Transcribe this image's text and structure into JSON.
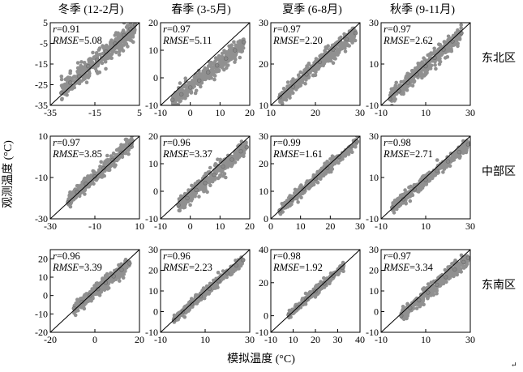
{
  "figure": {
    "xlabel": "模拟温度 (°C)",
    "ylabel": "观测温度 (°C)",
    "seasons": [
      "冬季 (12-2月)",
      "春季 (3-5月)",
      "夏季 (6-8月)",
      "秋季 (9-11月)"
    ],
    "regions": [
      "东北区",
      "中部区",
      "东南区"
    ],
    "stat_r_label": "r",
    "stat_rmse_label": "RMSE",
    "corner_mark": "↵"
  },
  "chart_data": [
    {
      "type": "scatter",
      "region": "东北区",
      "season": "冬季 (12-2月)",
      "r": "0.91",
      "rmse": "5.08",
      "xlim": [
        -35,
        5
      ],
      "ylim": [
        -35,
        5
      ],
      "xticks": [
        "-35",
        "-15",
        "5"
      ],
      "yticks": [
        "5",
        "-5",
        "-15",
        "-25",
        "-35"
      ],
      "ytick_values": [
        5,
        -5,
        -15,
        -25,
        -35
      ],
      "cloud": {
        "xrange": [
          -30,
          3
        ],
        "slope": 0.92,
        "intercept": -0.5,
        "spread": 2.6
      },
      "points": [
        [
          -30,
          -29
        ],
        [
          -26,
          -24
        ],
        [
          -22,
          -21
        ],
        [
          -18,
          -16
        ],
        [
          -14,
          -13
        ],
        [
          -10,
          -9
        ],
        [
          -6,
          -5
        ],
        [
          -2,
          -1
        ],
        [
          1,
          2
        ],
        [
          3,
          4
        ]
      ]
    },
    {
      "type": "scatter",
      "region": "东北区",
      "season": "春季 (3-5月)",
      "r": "0.97",
      "rmse": "5.11",
      "xlim": [
        -10,
        20
      ],
      "ylim": [
        -10,
        20
      ],
      "xticks": [
        "-10",
        "0",
        "10",
        "20"
      ],
      "yticks": [
        "20",
        "10",
        "0",
        "-10"
      ],
      "ytick_values": [
        20,
        10,
        0,
        -10
      ],
      "cloud": {
        "xrange": [
          -6,
          18
        ],
        "slope": 0.88,
        "intercept": -3.5,
        "spread": 1.5
      },
      "points": [
        [
          -6,
          -8
        ],
        [
          -3,
          -6
        ],
        [
          0,
          -3.5
        ],
        [
          3,
          -1
        ],
        [
          6,
          2
        ],
        [
          9,
          4.5
        ],
        [
          12,
          7
        ],
        [
          15,
          10
        ],
        [
          18,
          13
        ]
      ]
    },
    {
      "type": "scatter",
      "region": "东北区",
      "season": "夏季 (6-8月)",
      "r": "0.97",
      "rmse": "2.20",
      "xlim": [
        10,
        30
      ],
      "ylim": [
        10,
        30
      ],
      "xticks": [
        "10",
        "20",
        "30"
      ],
      "yticks": [
        "30",
        "20",
        "10"
      ],
      "ytick_values": [
        30,
        20,
        10
      ],
      "cloud": {
        "xrange": [
          12,
          29
        ],
        "slope": 0.95,
        "intercept": 0.3,
        "spread": 1.0
      },
      "points": [
        [
          12,
          12
        ],
        [
          15,
          14.5
        ],
        [
          18,
          17.5
        ],
        [
          21,
          20.5
        ],
        [
          24,
          23.5
        ],
        [
          27,
          26
        ],
        [
          29,
          27.5
        ]
      ]
    },
    {
      "type": "scatter",
      "region": "东北区",
      "season": "秋季 (9-11月)",
      "r": "0.97",
      "rmse": "2.62",
      "xlim": [
        -10,
        30
      ],
      "ylim": [
        -10,
        30
      ],
      "xticks": [
        "-10",
        "10",
        "30"
      ],
      "yticks": [
        "30",
        "10",
        "-10"
      ],
      "ytick_values": [
        30,
        10,
        -10
      ],
      "cloud": {
        "xrange": [
          -6,
          26
        ],
        "slope": 0.97,
        "intercept": -0.5,
        "spread": 2.0
      },
      "points": [
        [
          -6,
          -7
        ],
        [
          -2,
          -3
        ],
        [
          2,
          1
        ],
        [
          6,
          5
        ],
        [
          10,
          9
        ],
        [
          14,
          13
        ],
        [
          18,
          17
        ],
        [
          22,
          21
        ],
        [
          26,
          25
        ]
      ]
    },
    {
      "type": "scatter",
      "region": "中部区",
      "season": "冬季 (12-2月)",
      "r": "0.97",
      "rmse": "3.85",
      "xlim": [
        -30,
        10
      ],
      "ylim": [
        -30,
        10
      ],
      "xticks": [
        "-30",
        "-10",
        "10"
      ],
      "yticks": [
        "10",
        "-10",
        "-30"
      ],
      "ytick_values": [
        10,
        -10,
        -30
      ],
      "cloud": {
        "xrange": [
          -22,
          7
        ],
        "slope": 0.97,
        "intercept": 0.3,
        "spread": 1.7
      },
      "points": [
        [
          -22,
          -22
        ],
        [
          -18,
          -17
        ],
        [
          -14,
          -13
        ],
        [
          -10,
          -9.5
        ],
        [
          -6,
          -5.5
        ],
        [
          -2,
          -1.5
        ],
        [
          2,
          2
        ],
        [
          6,
          6
        ]
      ]
    },
    {
      "type": "scatter",
      "region": "中部区",
      "season": "春季 (3-5月)",
      "r": "0.96",
      "rmse": "3.37",
      "xlim": [
        -10,
        20
      ],
      "ylim": [
        -10,
        20
      ],
      "xticks": [
        "-10",
        "0",
        "10",
        "20"
      ],
      "yticks": [
        "20",
        "10",
        "0",
        "-10"
      ],
      "ytick_values": [
        20,
        10,
        0,
        -10
      ],
      "cloud": {
        "xrange": [
          -4,
          19
        ],
        "slope": 0.92,
        "intercept": -1.3,
        "spread": 1.4
      },
      "points": [
        [
          -4,
          -5
        ],
        [
          -1,
          -2.5
        ],
        [
          2,
          0.5
        ],
        [
          5,
          3
        ],
        [
          8,
          6
        ],
        [
          11,
          9
        ],
        [
          14,
          11.5
        ],
        [
          17,
          14.5
        ],
        [
          19,
          16
        ]
      ]
    },
    {
      "type": "scatter",
      "region": "中部区",
      "season": "夏季 (6-8月)",
      "r": "0.99",
      "rmse": "1.61",
      "xlim": [
        0,
        30
      ],
      "ylim": [
        0,
        30
      ],
      "xticks": [
        "0",
        "10",
        "20",
        "30"
      ],
      "yticks": [
        "30",
        "20",
        "10",
        "0"
      ],
      "ytick_values": [
        30,
        20,
        10,
        0
      ],
      "cloud": {
        "xrange": [
          3,
          29
        ],
        "slope": 0.96,
        "intercept": 0.3,
        "spread": 0.9
      },
      "points": [
        [
          3,
          3
        ],
        [
          7,
          7
        ],
        [
          11,
          10.8
        ],
        [
          15,
          14.6
        ],
        [
          19,
          18.5
        ],
        [
          23,
          22.5
        ],
        [
          27,
          26.3
        ],
        [
          29,
          28
        ]
      ]
    },
    {
      "type": "scatter",
      "region": "中部区",
      "season": "秋季 (9-11月)",
      "r": "0.98",
      "rmse": "2.71",
      "xlim": [
        -10,
        30
      ],
      "ylim": [
        -10,
        30
      ],
      "xticks": [
        "-10",
        "10",
        "30"
      ],
      "yticks": [
        "30",
        "10",
        "-10"
      ],
      "ytick_values": [
        30,
        10,
        -10
      ],
      "cloud": {
        "xrange": [
          -5,
          29
        ],
        "slope": 0.9,
        "intercept": -0.2,
        "spread": 1.4
      },
      "points": [
        [
          -5,
          -4.5
        ],
        [
          0,
          -0.5
        ],
        [
          5,
          4.3
        ],
        [
          10,
          8.8
        ],
        [
          15,
          13.3
        ],
        [
          20,
          17.8
        ],
        [
          25,
          22.3
        ],
        [
          29,
          26
        ]
      ]
    },
    {
      "type": "scatter",
      "region": "东南区",
      "season": "冬季 (12-2月)",
      "r": "0.96",
      "rmse": "3.39",
      "xlim": [
        -20,
        25
      ],
      "ylim": [
        -20,
        25
      ],
      "xticks": [
        "-20",
        "0",
        "20"
      ],
      "yticks": [
        "20",
        "10",
        "0",
        "-10",
        "-20"
      ],
      "ytick_values": [
        20,
        10,
        0,
        -10,
        -20
      ],
      "cloud": {
        "xrange": [
          -8,
          20
        ],
        "slope": 0.9,
        "intercept": -0.3,
        "spread": 1.7
      },
      "points": [
        [
          -8,
          -7
        ],
        [
          -4,
          -3.5
        ],
        [
          0,
          0
        ],
        [
          4,
          3.5
        ],
        [
          8,
          7
        ],
        [
          12,
          10.5
        ],
        [
          16,
          14
        ],
        [
          20,
          17.5
        ]
      ]
    },
    {
      "type": "scatter",
      "region": "东南区",
      "season": "春季 (3-5月)",
      "r": "0.96",
      "rmse": "2.23",
      "xlim": [
        -10,
        30
      ],
      "ylim": [
        -10,
        30
      ],
      "xticks": [
        "-10",
        "10",
        "30"
      ],
      "yticks": [
        "30",
        "20",
        "10",
        "0",
        "-10"
      ],
      "ytick_values": [
        30,
        20,
        10,
        0,
        -10
      ],
      "cloud": {
        "xrange": [
          -4,
          27
        ],
        "slope": 0.93,
        "intercept": 0.0,
        "spread": 1.1
      },
      "points": [
        [
          -4,
          -4
        ],
        [
          0,
          0
        ],
        [
          4,
          3.7
        ],
        [
          8,
          7.4
        ],
        [
          12,
          11
        ],
        [
          16,
          14.8
        ],
        [
          20,
          18.6
        ],
        [
          24,
          22.3
        ],
        [
          27,
          25
        ]
      ]
    },
    {
      "type": "scatter",
      "region": "东南区",
      "season": "夏季 (6-8月)",
      "r": "0.98",
      "rmse": "1.92",
      "xlim": [
        -10,
        40
      ],
      "ylim": [
        -10,
        40
      ],
      "xticks": [
        "-10",
        "10",
        "20",
        "30",
        "40"
      ],
      "yticks": [
        "40",
        "20",
        "0",
        "-10"
      ],
      "ytick_values": [
        40,
        20,
        0,
        -10
      ],
      "cloud": {
        "xrange": [
          0,
          31
        ],
        "slope": 0.95,
        "intercept": 0.5,
        "spread": 1.2
      },
      "points": [
        [
          0,
          0.5
        ],
        [
          5,
          5.2
        ],
        [
          10,
          10
        ],
        [
          15,
          14.8
        ],
        [
          20,
          19.5
        ],
        [
          25,
          24.3
        ],
        [
          30,
          29
        ]
      ]
    },
    {
      "type": "scatter",
      "region": "东南区",
      "season": "秋季 (9-11月)",
      "r": "0.97",
      "rmse": "3.34",
      "xlim": [
        -10,
        30
      ],
      "ylim": [
        -10,
        30
      ],
      "xticks": [
        "-10",
        "10",
        "30"
      ],
      "yticks": [
        "30",
        "20",
        "10",
        "0",
        "-10"
      ],
      "ytick_values": [
        30,
        20,
        10,
        0,
        -10
      ],
      "cloud": {
        "xrange": [
          -1,
          29
        ],
        "slope": 0.93,
        "intercept": -1.0,
        "spread": 1.5
      },
      "points": [
        [
          -1,
          -2
        ],
        [
          3,
          1.8
        ],
        [
          7,
          5.5
        ],
        [
          11,
          9.2
        ],
        [
          15,
          13
        ],
        [
          19,
          16.7
        ],
        [
          23,
          20.4
        ],
        [
          27,
          24
        ],
        [
          29,
          26
        ]
      ]
    }
  ]
}
